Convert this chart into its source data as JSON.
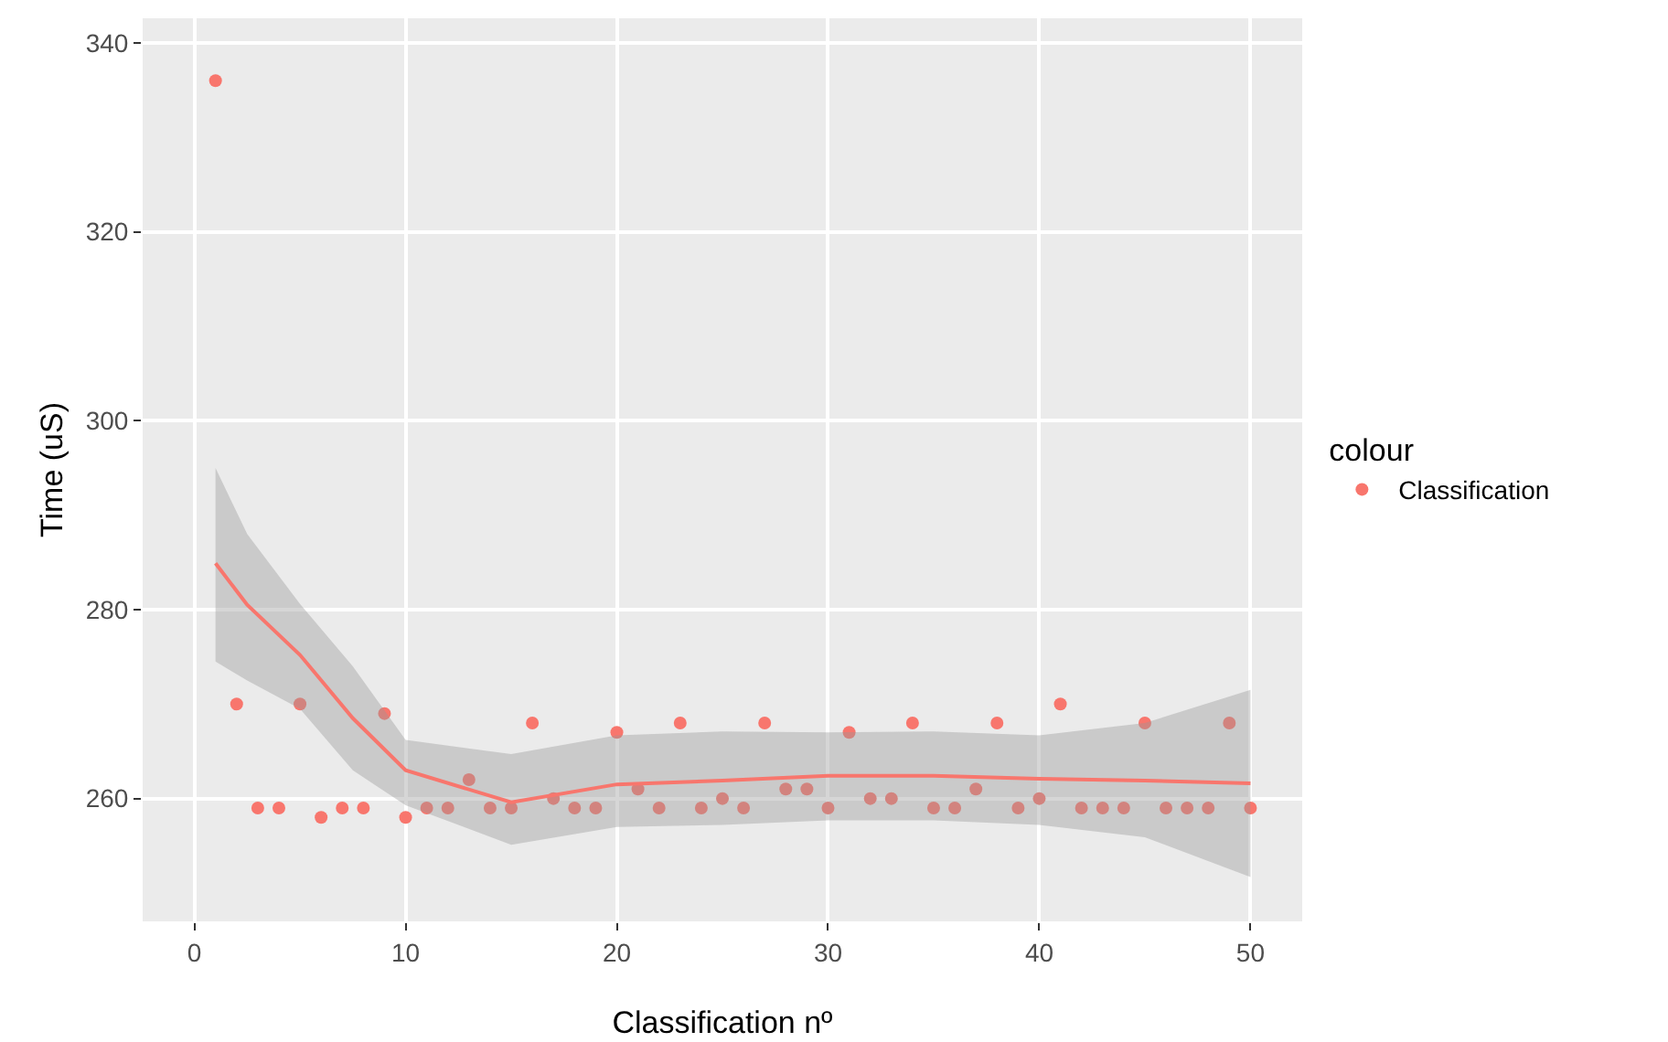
{
  "chart_data": {
    "type": "scatter",
    "xlabel": "Classification nº",
    "ylabel": "Time (uS)",
    "legend_title": "colour",
    "legend": "right",
    "grid": true,
    "xlim": [
      -2.45,
      52.45
    ],
    "xticks": [
      0,
      10,
      20,
      30,
      40,
      50
    ],
    "ylim": [
      247,
      342.6
    ],
    "yticks": [
      260,
      280,
      300,
      320,
      340
    ],
    "series": [
      {
        "name": "Classification",
        "marker": "circle",
        "color": "#f8766d",
        "x": [
          1,
          2,
          3,
          4,
          5,
          6,
          7,
          8,
          9,
          10,
          11,
          12,
          13,
          14,
          15,
          16,
          17,
          18,
          19,
          20,
          21,
          22,
          23,
          24,
          25,
          26,
          27,
          28,
          29,
          30,
          31,
          32,
          33,
          34,
          35,
          36,
          37,
          38,
          39,
          40,
          41,
          42,
          43,
          44,
          45,
          46,
          47,
          48,
          49,
          50
        ],
        "values": [
          336,
          270,
          259,
          259,
          270,
          258,
          259,
          259,
          269,
          258,
          259,
          259,
          262,
          259,
          259,
          268,
          260,
          259,
          259,
          267,
          261,
          259,
          268,
          259,
          260,
          259,
          268,
          261,
          261,
          259,
          267,
          260,
          260,
          268,
          259,
          259,
          261,
          268,
          259,
          260,
          270,
          259,
          259,
          259,
          268,
          259,
          259,
          259,
          268,
          259
        ]
      },
      {
        "type": "line",
        "color": "#f8766d",
        "line_style": "solid",
        "x": [
          1,
          2.5,
          5,
          7.5,
          10,
          15,
          20,
          25,
          30,
          35,
          40,
          45,
          50
        ],
        "values": [
          284.9,
          280.5,
          275.2,
          268.5,
          263,
          259.6,
          261.5,
          261.9,
          262.4,
          262.4,
          262.1,
          261.9,
          261.6
        ],
        "lower": [
          274.5,
          272.5,
          269.5,
          263,
          259.3,
          255.1,
          257,
          257.2,
          257.7,
          257.7,
          257.2,
          255.9,
          251.7
        ],
        "upper": [
          295,
          288,
          280.6,
          274,
          266.2,
          264.7,
          266.7,
          267.1,
          267,
          267.1,
          266.7,
          268,
          271.5
        ]
      }
    ]
  }
}
